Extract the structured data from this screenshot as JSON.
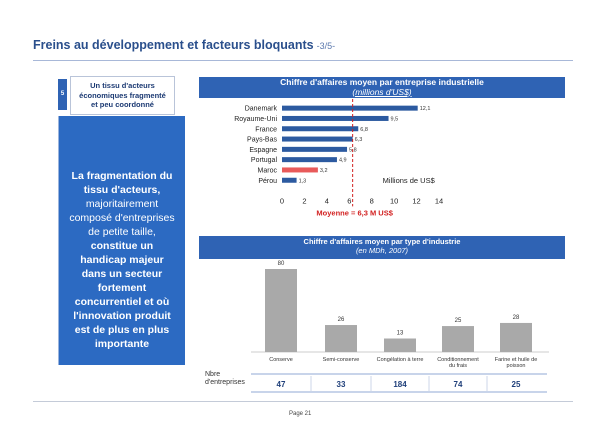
{
  "header": {
    "title": "Freins au développement et facteurs bloquants",
    "subtitle": "-3/5-"
  },
  "sidebar": {
    "number": "5",
    "topic_lines": [
      "Un tissu d'acteurs",
      "économiques fragmenté",
      "et peu coordonné"
    ],
    "panel_lines": [
      {
        "text": "La fragmentation du",
        "bold": true
      },
      {
        "text": "tissu d'acteurs,",
        "bold": true
      },
      {
        "text": "majoritairement",
        "bold": false
      },
      {
        "text": "composé d'entreprises",
        "bold": false
      },
      {
        "text": "de petite taille,",
        "bold": false
      },
      {
        "text": "constitue un",
        "bold": true
      },
      {
        "text": "handicap majeur",
        "bold": true
      },
      {
        "text": "dans un secteur",
        "bold": true
      },
      {
        "text": "fortement",
        "bold": true
      },
      {
        "text": "concurrentiel et où",
        "bold": true
      },
      {
        "text": "l'innovation produit",
        "bold": true
      },
      {
        "text": "est de plus en plus",
        "bold": true
      },
      {
        "text": "importante",
        "bold": true
      }
    ]
  },
  "chart_data": [
    {
      "type": "bar",
      "orientation": "horizontal",
      "title": "Chiffre d'affaires moyen par entreprise industrielle",
      "subtitle": "(millions d'US$)",
      "categories": [
        "Danemark",
        "Royaume-Uni",
        "France",
        "Pays-Bas",
        "Espagne",
        "Portugal",
        "Maroc",
        "Pérou"
      ],
      "values": [
        12.1,
        9.5,
        6.8,
        6.3,
        5.8,
        4.9,
        3.2,
        1.3
      ],
      "value_labels": [
        "12,1",
        "9,5",
        "6,8",
        "6,3",
        "5,8",
        "4,9",
        "3,2",
        "1,3"
      ],
      "bar_colors": [
        "#2c5aa0",
        "#2c5aa0",
        "#2c5aa0",
        "#2c5aa0",
        "#2c5aa0",
        "#2c5aa0",
        "#e85a5a",
        "#2c5aa0"
      ],
      "xticks": [
        "0",
        "2",
        "4",
        "6",
        "8",
        "10",
        "12",
        "14"
      ],
      "xlim": [
        0,
        14
      ],
      "unit_label": "Millions de US$",
      "reference_line": {
        "value": 6.3,
        "label": "Moyenne = 6,3 M US$",
        "color": "#d22020"
      }
    },
    {
      "type": "bar",
      "title": "Chiffre d'affaires moyen par type d'industrie",
      "subtitle": "(en MDh, 2007)",
      "categories": [
        "Conserve",
        "Semi-conserve",
        "Congélation à terre",
        "Conditionnement du frais",
        "Farine et huile de poisson"
      ],
      "values": [
        80,
        26,
        13,
        25,
        28
      ],
      "bar_color": "#a9a9a9",
      "table": {
        "label_lines": [
          "Nbre",
          "d'entreprises"
        ],
        "values": [
          "47",
          "33",
          "184",
          "74",
          "25"
        ]
      }
    }
  ],
  "footer": {
    "page": "Page 21"
  }
}
